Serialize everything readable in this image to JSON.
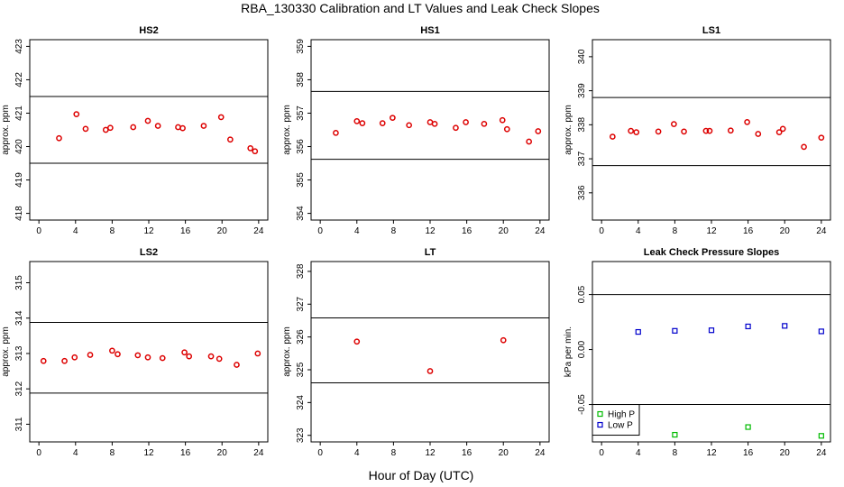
{
  "title": "RBA_130330  Calibration and LT Values and Leak Check Slopes",
  "xlabel": "Hour of Day (UTC)",
  "colors": {
    "red": "#dd0000",
    "green": "#00bb00",
    "blue": "#0000cc",
    "axis": "#000000"
  },
  "chart_data": [
    {
      "type": "scatter",
      "title": "HS2",
      "ylabel": "approx. ppm",
      "xlim": [
        -1,
        25
      ],
      "ylim": [
        417.8,
        423.2
      ],
      "xticks": [
        "0",
        "4",
        "8",
        "12",
        "16",
        "20",
        "24"
      ],
      "yticks": [
        "418",
        "419",
        "420",
        "421",
        "422",
        "423"
      ],
      "hlines": [
        421.5,
        419.5
      ],
      "series": [
        {
          "name": "HS2",
          "marker": "circle",
          "color": "#dd0000",
          "x": [
            2.2,
            4.1,
            5.1,
            7.3,
            7.8,
            10.3,
            11.9,
            13.0,
            15.2,
            15.7,
            18.0,
            19.9,
            20.9,
            23.1,
            23.6
          ],
          "y": [
            420.25,
            420.97,
            420.53,
            420.5,
            420.56,
            420.58,
            420.77,
            420.62,
            420.58,
            420.55,
            420.62,
            420.88,
            420.21,
            419.95,
            419.86
          ]
        }
      ]
    },
    {
      "type": "scatter",
      "title": "HS1",
      "ylabel": "approx. ppm",
      "xlim": [
        -1,
        25
      ],
      "ylim": [
        353.8,
        359.2
      ],
      "xticks": [
        "0",
        "4",
        "8",
        "12",
        "16",
        "20",
        "24"
      ],
      "yticks": [
        "354",
        "355",
        "356",
        "357",
        "358",
        "359"
      ],
      "hlines": [
        357.65,
        355.62
      ],
      "series": [
        {
          "name": "HS1",
          "marker": "circle",
          "color": "#dd0000",
          "x": [
            1.7,
            4.0,
            4.6,
            6.8,
            7.9,
            9.7,
            12.0,
            12.5,
            14.8,
            15.9,
            17.9,
            19.9,
            20.4,
            22.8,
            23.8
          ],
          "y": [
            356.41,
            356.76,
            356.7,
            356.7,
            356.86,
            356.64,
            356.73,
            356.68,
            356.56,
            356.73,
            356.68,
            356.79,
            356.52,
            356.15,
            356.46
          ]
        }
      ]
    },
    {
      "type": "scatter",
      "title": "LS1",
      "ylabel": "approx. ppm",
      "xlim": [
        -1,
        25
      ],
      "ylim": [
        335.2,
        340.5
      ],
      "xticks": [
        "0",
        "4",
        "8",
        "12",
        "16",
        "20",
        "24"
      ],
      "yticks": [
        "336",
        "337",
        "338",
        "339",
        "340"
      ],
      "hlines": [
        338.8,
        336.8
      ],
      "series": [
        {
          "name": "LS1",
          "marker": "circle",
          "color": "#dd0000",
          "x": [
            1.2,
            3.2,
            3.8,
            6.2,
            7.9,
            9.0,
            11.4,
            11.8,
            14.1,
            15.9,
            17.1,
            19.4,
            19.8,
            22.1,
            24.0
          ],
          "y": [
            337.65,
            337.82,
            337.78,
            337.8,
            338.02,
            337.8,
            337.82,
            337.82,
            337.83,
            338.08,
            337.73,
            337.78,
            337.88,
            337.35,
            337.62
          ]
        }
      ]
    },
    {
      "type": "scatter",
      "title": "LS2",
      "ylabel": "approx. ppm",
      "xlim": [
        -1,
        25
      ],
      "ylim": [
        310.5,
        315.6
      ],
      "xticks": [
        "0",
        "4",
        "8",
        "12",
        "16",
        "20",
        "24"
      ],
      "yticks": [
        "311",
        "312",
        "313",
        "314",
        "315"
      ],
      "hlines": [
        313.88,
        311.88
      ],
      "series": [
        {
          "name": "LS2",
          "marker": "circle",
          "color": "#dd0000",
          "x": [
            0.5,
            2.8,
            3.9,
            5.6,
            8.0,
            8.6,
            10.8,
            11.9,
            13.5,
            15.9,
            16.4,
            18.8,
            19.7,
            21.6,
            23.9
          ],
          "y": [
            312.79,
            312.79,
            312.89,
            312.96,
            313.08,
            312.98,
            312.95,
            312.89,
            312.87,
            313.03,
            312.92,
            312.92,
            312.85,
            312.68,
            313.0
          ]
        }
      ]
    },
    {
      "type": "scatter",
      "title": "LT",
      "ylabel": "approx. ppm",
      "xlim": [
        -1,
        25
      ],
      "ylim": [
        322.8,
        328.3
      ],
      "xticks": [
        "0",
        "4",
        "8",
        "12",
        "16",
        "20",
        "24"
      ],
      "yticks": [
        "323",
        "324",
        "325",
        "326",
        "327",
        "328"
      ],
      "hlines": [
        326.58,
        324.6
      ],
      "series": [
        {
          "name": "LT",
          "marker": "circle",
          "color": "#dd0000",
          "x": [
            4.0,
            12.0,
            20.0
          ],
          "y": [
            325.86,
            324.96,
            325.9
          ]
        }
      ]
    },
    {
      "type": "scatter",
      "title": "Leak Check Pressure Slopes",
      "ylabel": "kPa per min.",
      "xlim": [
        -1,
        25
      ],
      "ylim": [
        -0.084,
        0.08
      ],
      "xticks": [
        "0",
        "4",
        "8",
        "12",
        "16",
        "20",
        "24"
      ],
      "yticks": [
        "-0.05",
        "0.00",
        "0.05"
      ],
      "hlines": [
        0.05,
        -0.05
      ],
      "legend": {
        "position": "bottom-left",
        "entries": [
          "High P",
          "Low P"
        ]
      },
      "series": [
        {
          "name": "High P",
          "marker": "square",
          "color": "#00bb00",
          "x": [
            8.0,
            16.0,
            24.0
          ],
          "y": [
            -0.0775,
            -0.0705,
            -0.0785
          ]
        },
        {
          "name": "Low P",
          "marker": "square",
          "color": "#0000cc",
          "x": [
            4.0,
            8.0,
            12.0,
            16.0,
            20.0,
            24.0
          ],
          "y": [
            0.016,
            0.017,
            0.0175,
            0.021,
            0.0215,
            0.0165
          ]
        }
      ]
    }
  ]
}
